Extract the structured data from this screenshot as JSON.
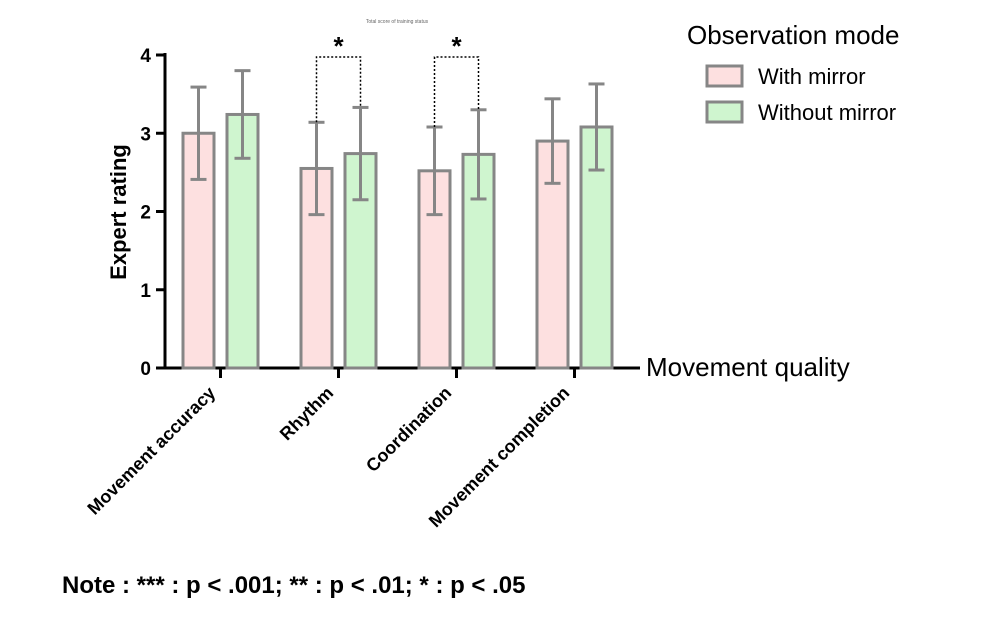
{
  "chart_data": {
    "type": "bar",
    "title": "Total score of training status",
    "xlabel": "Movement quality",
    "ylabel": "Expert rating",
    "ylim": [
      0,
      4
    ],
    "yticks": [
      0,
      1,
      2,
      3,
      4
    ],
    "categories": [
      "Movement accuracy",
      "Rhythm",
      "Coordination",
      "Movement completion"
    ],
    "series": [
      {
        "name": "With mirror",
        "color": "#fde0e0",
        "values": [
          3.0,
          2.55,
          2.52,
          2.9
        ],
        "errors": [
          0.59,
          0.59,
          0.56,
          0.54
        ]
      },
      {
        "name": "Without mirror",
        "color": "#cff5cf",
        "values": [
          3.24,
          2.74,
          2.73,
          3.08
        ],
        "errors": [
          0.56,
          0.59,
          0.57,
          0.55
        ]
      }
    ],
    "edge_color": "#868686",
    "legend": {
      "title": "Observation mode",
      "position": "top-right"
    },
    "significance": [
      {
        "category": 1,
        "label": "*"
      },
      {
        "category": 2,
        "label": "*"
      }
    ],
    "grid": false
  },
  "note": "Note : *** : p < .001; ** : p < .01; * : p < .05"
}
